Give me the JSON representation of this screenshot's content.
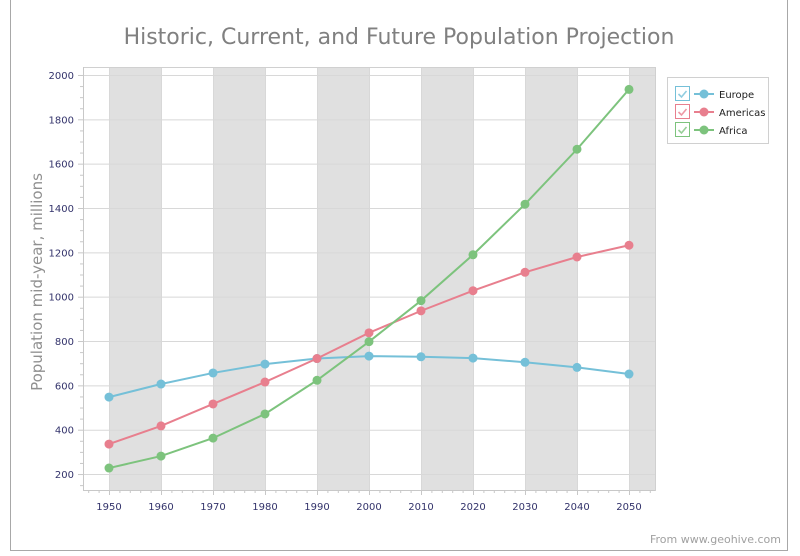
{
  "chart_data": {
    "type": "line",
    "title": "Historic, Current, and Future Population Projection",
    "xlabel": "",
    "ylabel": "Population mid-year, millions",
    "footer": "From www.geohive.com",
    "x": [
      1950,
      1960,
      1970,
      1980,
      1990,
      2000,
      2010,
      2020,
      2030,
      2040,
      2050
    ],
    "x_tick_labels": [
      "1950",
      "1960",
      "1970",
      "1980",
      "1990",
      "2000",
      "2010",
      "2020",
      "2030",
      "2040",
      "2050"
    ],
    "y_ticks": [
      200,
      400,
      600,
      800,
      1000,
      1200,
      1400,
      1600,
      1800,
      2000
    ],
    "y_tick_labels": [
      "200",
      "400",
      "600",
      "800",
      "1000",
      "1200",
      "1400",
      "1600",
      "1800",
      "2000"
    ],
    "xlim": [
      1945,
      2055
    ],
    "ylim": [
      128,
      2036
    ],
    "grid": true,
    "legend_position": "top-right",
    "series": [
      {
        "name": "Europe",
        "color": "#75c0d8",
        "checked": true,
        "values": [
          547,
          606,
          656,
          696,
          721,
          732,
          729,
          723,
          704,
          681,
          651
        ]
      },
      {
        "name": "Americas",
        "color": "#e87f8e",
        "checked": true,
        "values": [
          335,
          417,
          516,
          615,
          721,
          837,
          936,
          1027,
          1110,
          1179,
          1232
        ]
      },
      {
        "name": "Africa",
        "color": "#7dc37d",
        "checked": true,
        "values": [
          227,
          281,
          362,
          471,
          623,
          797,
          982,
          1189,
          1417,
          1665,
          1935
        ]
      }
    ]
  }
}
